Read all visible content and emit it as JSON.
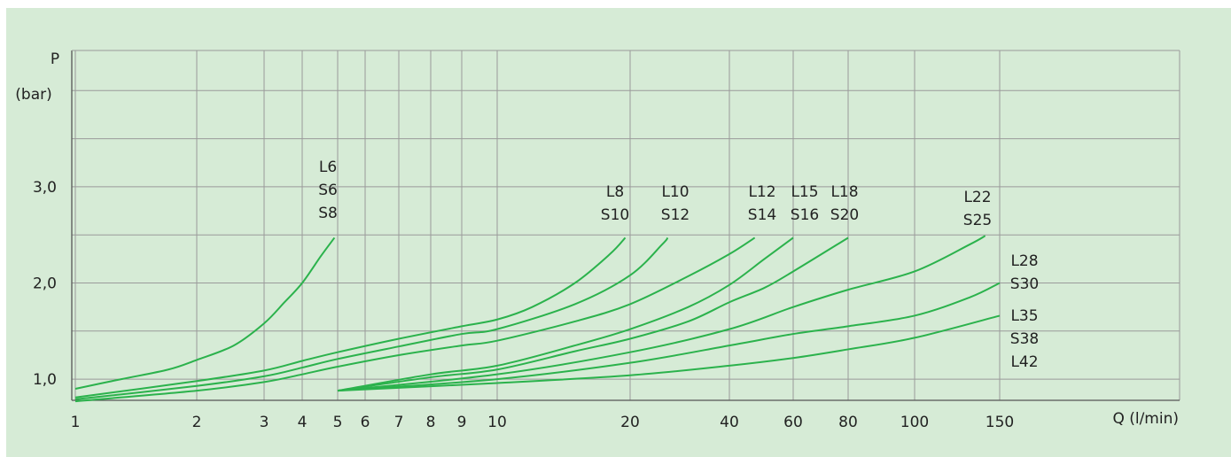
{
  "chart_data": {
    "type": "line",
    "y_axis": {
      "unit_label": "P",
      "unit_sub": "(bar)",
      "ticks": [
        {
          "value": 1.0,
          "label": "1,0"
        },
        {
          "value": 2.0,
          "label": "2,0"
        },
        {
          "value": 3.0,
          "label": "3,0"
        }
      ]
    },
    "x_axis": {
      "label": "Q (l/min)",
      "scale": "log",
      "ticks": [
        1,
        2,
        3,
        4,
        5,
        6,
        7,
        8,
        9,
        10,
        20,
        40,
        60,
        80,
        100,
        150
      ]
    },
    "grid": true,
    "line_color": "#2bb24c",
    "series": [
      {
        "name": "L6 S6 S8",
        "points": [
          [
            1,
            0.9
          ],
          [
            1.3,
            1.0
          ],
          [
            1.7,
            1.1
          ],
          [
            2,
            1.2
          ],
          [
            2.5,
            1.35
          ],
          [
            3,
            1.58
          ],
          [
            3.5,
            1.8
          ],
          [
            4,
            2.0
          ],
          [
            4.5,
            2.28
          ],
          [
            4.9,
            2.47
          ]
        ]
      },
      {
        "name": "L8 S10",
        "points": [
          [
            1,
            0.81
          ],
          [
            2,
            0.98
          ],
          [
            3,
            1.09
          ],
          [
            4,
            1.19
          ],
          [
            5,
            1.28
          ],
          [
            7,
            1.42
          ],
          [
            9,
            1.55
          ],
          [
            10,
            1.62
          ],
          [
            12,
            1.75
          ],
          [
            15,
            2.0
          ],
          [
            18,
            2.3
          ],
          [
            19.5,
            2.47
          ]
        ]
      },
      {
        "name": "L10 S12",
        "points": [
          [
            1,
            0.79
          ],
          [
            2,
            0.93
          ],
          [
            3,
            1.03
          ],
          [
            4,
            1.12
          ],
          [
            5,
            1.21
          ],
          [
            7,
            1.34
          ],
          [
            9,
            1.47
          ],
          [
            10,
            1.52
          ],
          [
            15,
            1.78
          ],
          [
            20,
            2.08
          ],
          [
            25,
            2.4
          ],
          [
            26,
            2.47
          ]
        ]
      },
      {
        "name": "L12 S14",
        "points": [
          [
            1,
            0.77
          ],
          [
            2,
            0.88
          ],
          [
            3,
            0.97
          ],
          [
            4,
            1.05
          ],
          [
            5,
            1.13
          ],
          [
            7,
            1.25
          ],
          [
            9,
            1.35
          ],
          [
            10,
            1.4
          ],
          [
            15,
            1.6
          ],
          [
            20,
            1.78
          ],
          [
            30,
            2.07
          ],
          [
            40,
            2.3
          ],
          [
            47,
            2.47
          ]
        ]
      },
      {
        "name": "L15 S16",
        "points": [
          [
            5,
            0.88
          ],
          [
            8,
            1.05
          ],
          [
            10,
            1.14
          ],
          [
            15,
            1.35
          ],
          [
            20,
            1.52
          ],
          [
            30,
            1.75
          ],
          [
            40,
            1.98
          ],
          [
            50,
            2.25
          ],
          [
            60,
            2.47
          ]
        ]
      },
      {
        "name": "L18 S20",
        "points": [
          [
            5,
            0.88
          ],
          [
            8,
            1.02
          ],
          [
            10,
            1.1
          ],
          [
            15,
            1.29
          ],
          [
            20,
            1.42
          ],
          [
            30,
            1.6
          ],
          [
            40,
            1.8
          ],
          [
            50,
            1.95
          ],
          [
            60,
            2.12
          ],
          [
            80,
            2.47
          ]
        ]
      },
      {
        "name": "L22 S25",
        "points": [
          [
            5,
            0.88
          ],
          [
            10,
            1.05
          ],
          [
            20,
            1.28
          ],
          [
            40,
            1.52
          ],
          [
            60,
            1.75
          ],
          [
            80,
            1.93
          ],
          [
            100,
            2.12
          ],
          [
            130,
            2.4
          ],
          [
            140,
            2.49
          ]
        ]
      },
      {
        "name": "L28 S30",
        "points": [
          [
            5,
            0.88
          ],
          [
            10,
            1.0
          ],
          [
            20,
            1.17
          ],
          [
            40,
            1.35
          ],
          [
            60,
            1.47
          ],
          [
            80,
            1.55
          ],
          [
            100,
            1.66
          ],
          [
            130,
            1.85
          ],
          [
            150,
            2.0
          ]
        ]
      },
      {
        "name": "L35 S38 L42",
        "points": [
          [
            5,
            0.88
          ],
          [
            10,
            0.96
          ],
          [
            20,
            1.04
          ],
          [
            40,
            1.14
          ],
          [
            60,
            1.22
          ],
          [
            80,
            1.31
          ],
          [
            100,
            1.43
          ],
          [
            150,
            1.66
          ]
        ]
      }
    ],
    "labels": [
      {
        "lines": [
          "L6",
          "S6",
          "S8"
        ],
        "x": 4.9
      },
      {
        "lines": [
          "L8",
          "S10"
        ],
        "x": 19.5
      },
      {
        "lines": [
          "L10",
          "S12"
        ],
        "x": 26
      },
      {
        "lines": [
          "L12",
          "S14"
        ],
        "x": 47
      },
      {
        "lines": [
          "L15",
          "S16"
        ],
        "x": 60
      },
      {
        "lines": [
          "L18",
          "S20"
        ],
        "x": 80
      },
      {
        "lines": [
          "L22",
          "S25"
        ],
        "x": 140
      },
      {
        "lines": [
          "L28",
          "S30"
        ],
        "x": 150
      },
      {
        "lines": [
          "L35",
          "S38",
          "L42"
        ],
        "x": 150
      }
    ]
  }
}
